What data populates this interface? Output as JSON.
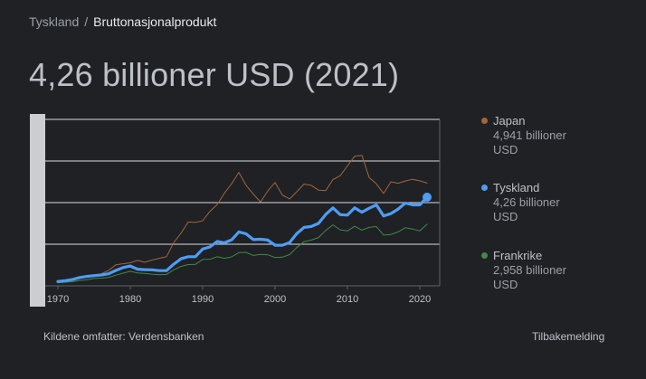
{
  "breadcrumb": {
    "parent": "Tyskland",
    "separator": "/",
    "current": "Bruttonasjonalprodukt"
  },
  "headline": "4,26 billioner USD (2021)",
  "legend": [
    {
      "name": "Japan",
      "value": "4,941 billioner",
      "unit": "USD",
      "color": "#a0663c"
    },
    {
      "name": "Tyskland",
      "value": "4,26 billioner",
      "unit": "USD",
      "color": "#4e9cf5"
    },
    {
      "name": "Frankrike",
      "value": "2,958 billioner",
      "unit": "USD",
      "color": "#3f8a4a"
    }
  ],
  "footer": {
    "source": "Kildene omfatter: Verdensbanken",
    "feedback": "Tilbakemelding"
  },
  "chart_data": {
    "type": "line",
    "xlim": [
      1970,
      2021
    ],
    "ylim": [
      0,
      8
    ],
    "x_ticks": [
      1970,
      1980,
      1990,
      2000,
      2010,
      2020
    ],
    "y_gridlines": [
      0,
      2,
      4,
      6,
      8
    ],
    "grid": true,
    "legend_placement": "right",
    "series": [
      {
        "name": "Japan",
        "color": "#a0663c",
        "x": [
          1970,
          1971,
          1972,
          1973,
          1974,
          1975,
          1976,
          1977,
          1978,
          1979,
          1980,
          1981,
          1982,
          1983,
          1984,
          1985,
          1986,
          1987,
          1988,
          1989,
          1990,
          1991,
          1992,
          1993,
          1994,
          1995,
          1996,
          1997,
          1998,
          1999,
          2000,
          2001,
          2002,
          2003,
          2004,
          2005,
          2006,
          2007,
          2008,
          2009,
          2010,
          2011,
          2012,
          2013,
          2014,
          2015,
          2016,
          2017,
          2018,
          2019,
          2020,
          2021
        ],
        "y": [
          0.21,
          0.24,
          0.32,
          0.43,
          0.48,
          0.52,
          0.58,
          0.74,
          1.01,
          1.06,
          1.11,
          1.22,
          1.13,
          1.24,
          1.32,
          1.4,
          2.08,
          2.52,
          3.07,
          3.05,
          3.13,
          3.58,
          3.91,
          4.45,
          4.91,
          5.45,
          4.83,
          4.41,
          4.03,
          4.56,
          4.97,
          4.37,
          4.18,
          4.52,
          4.89,
          4.83,
          4.6,
          4.58,
          5.11,
          5.29,
          5.76,
          6.23,
          6.27,
          5.21,
          4.9,
          4.44,
          5.0,
          4.93,
          5.04,
          5.12,
          5.05,
          4.94
        ]
      },
      {
        "name": "Tyskland",
        "color": "#4e9cf5",
        "x": [
          1970,
          1971,
          1972,
          1973,
          1974,
          1975,
          1976,
          1977,
          1978,
          1979,
          1980,
          1981,
          1982,
          1983,
          1984,
          1985,
          1986,
          1987,
          1988,
          1989,
          1990,
          1991,
          1992,
          1993,
          1994,
          1995,
          1996,
          1997,
          1998,
          1999,
          2000,
          2001,
          2002,
          2003,
          2004,
          2005,
          2006,
          2007,
          2008,
          2009,
          2010,
          2011,
          2012,
          2013,
          2014,
          2015,
          2016,
          2017,
          2018,
          2019,
          2020,
          2021
        ],
        "y": [
          0.21,
          0.25,
          0.3,
          0.4,
          0.45,
          0.49,
          0.52,
          0.58,
          0.74,
          0.88,
          0.95,
          0.8,
          0.78,
          0.77,
          0.73,
          0.73,
          1.04,
          1.3,
          1.4,
          1.4,
          1.77,
          1.87,
          2.13,
          2.07,
          2.21,
          2.59,
          2.5,
          2.22,
          2.24,
          2.2,
          1.95,
          1.95,
          2.08,
          2.51,
          2.81,
          2.85,
          3.0,
          3.43,
          3.75,
          3.42,
          3.4,
          3.75,
          3.54,
          3.73,
          3.89,
          3.36,
          3.47,
          3.69,
          3.98,
          3.89,
          3.89,
          4.26
        ]
      },
      {
        "name": "Frankrike",
        "color": "#3f8a4a",
        "x": [
          1970,
          1971,
          1972,
          1973,
          1974,
          1975,
          1976,
          1977,
          1978,
          1979,
          1980,
          1981,
          1982,
          1983,
          1984,
          1985,
          1986,
          1987,
          1988,
          1989,
          1990,
          1991,
          1992,
          1993,
          1994,
          1995,
          1996,
          1997,
          1998,
          1999,
          2000,
          2001,
          2002,
          2003,
          2004,
          2005,
          2006,
          2007,
          2008,
          2009,
          2010,
          2011,
          2012,
          2013,
          2014,
          2015,
          2016,
          2017,
          2018,
          2019,
          2020,
          2021
        ],
        "y": [
          0.15,
          0.17,
          0.2,
          0.26,
          0.29,
          0.36,
          0.37,
          0.41,
          0.51,
          0.61,
          0.7,
          0.62,
          0.6,
          0.56,
          0.53,
          0.55,
          0.77,
          0.93,
          1.02,
          1.03,
          1.27,
          1.28,
          1.4,
          1.32,
          1.39,
          1.6,
          1.61,
          1.46,
          1.51,
          1.49,
          1.36,
          1.38,
          1.5,
          1.84,
          2.12,
          2.2,
          2.32,
          2.66,
          2.93,
          2.69,
          2.64,
          2.86,
          2.68,
          2.81,
          2.85,
          2.44,
          2.47,
          2.59,
          2.79,
          2.73,
          2.64,
          2.96
        ]
      }
    ]
  }
}
